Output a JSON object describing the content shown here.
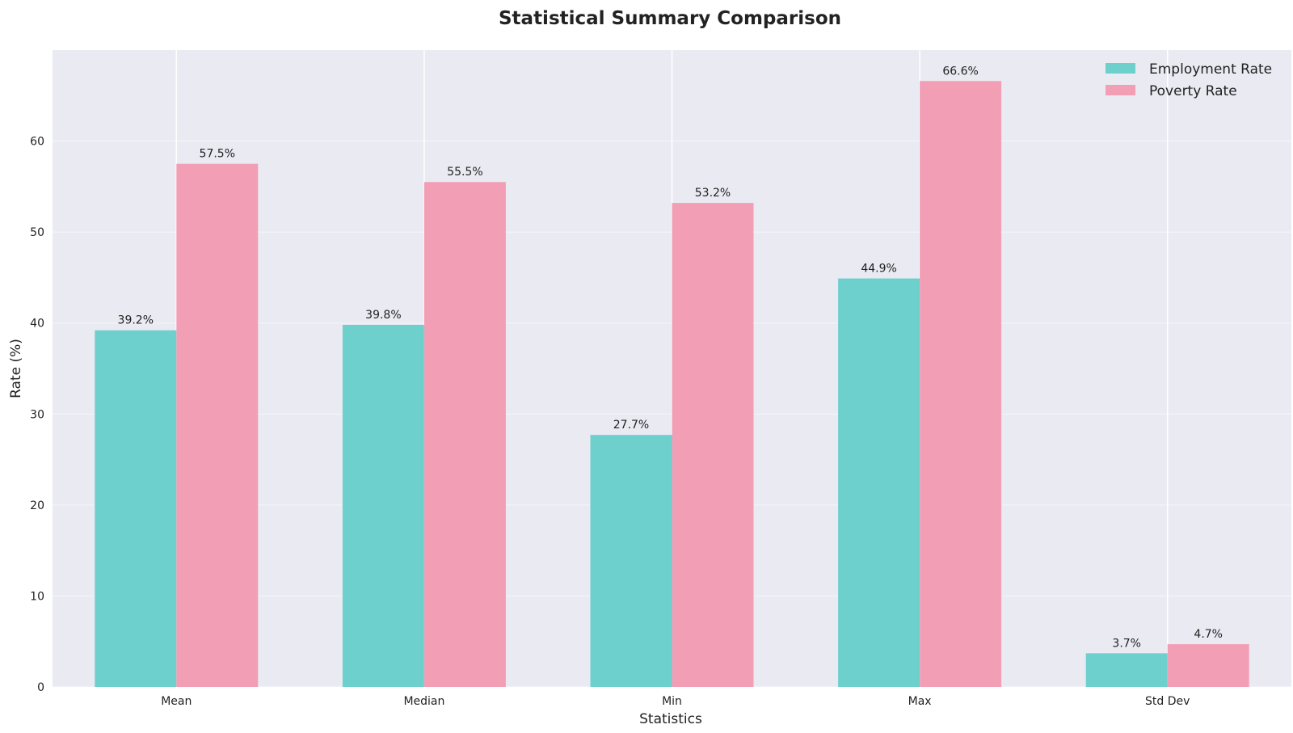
{
  "chart_data": {
    "type": "bar",
    "title": "Statistical Summary Comparison",
    "xlabel": "Statistics",
    "ylabel": "Rate (%)",
    "categories": [
      "Mean",
      "Median",
      "Min",
      "Max",
      "Std Dev"
    ],
    "series": [
      {
        "name": "Employment Rate",
        "values": [
          39.2,
          39.8,
          27.7,
          44.9,
          3.7
        ],
        "labels": [
          "39.2%",
          "39.8%",
          "27.7%",
          "44.9%",
          "3.7%"
        ],
        "color": "#6dd0cd"
      },
      {
        "name": "Poverty Rate",
        "values": [
          57.5,
          55.5,
          53.2,
          66.6,
          4.7
        ],
        "labels": [
          "57.5%",
          "55.5%",
          "53.2%",
          "66.6%",
          "4.7%"
        ],
        "color": "#f29fb6"
      }
    ],
    "yticks": [
      0,
      10,
      20,
      30,
      40,
      50,
      60
    ],
    "ylim": [
      0,
      70
    ],
    "grid": true,
    "legend_position": "top-right",
    "background_color": "#eaeaf2"
  }
}
